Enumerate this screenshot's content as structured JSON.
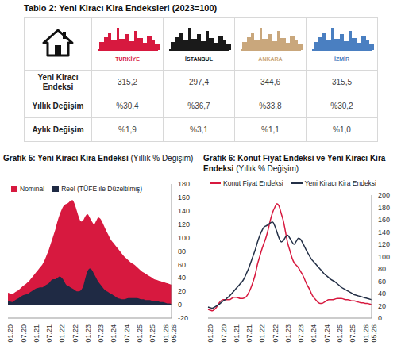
{
  "table": {
    "title": "Tablo 2: Yeni Kiracı Kira Endeksleri (2023=100)",
    "columns": [
      {
        "label": "TÜRKİYE",
        "color": "#d7193f"
      },
      {
        "label": "İSTANBUL",
        "color": "#1a1a1a"
      },
      {
        "label": "ANKARA",
        "color": "#c9a77c"
      },
      {
        "label": "İZMİR",
        "color": "#4a7fc1"
      }
    ],
    "rows": [
      {
        "label": "Yeni Kiracı Endeksi",
        "values": [
          "315,2",
          "297,4",
          "344,6",
          "315,5"
        ]
      },
      {
        "label": "Yıllık Değişim",
        "values": [
          "%30,4",
          "%36,7",
          "%33,8",
          "%30,2"
        ]
      },
      {
        "label": "Aylık Değişim",
        "values": [
          "%1,9",
          "%3,1",
          "%1,1",
          "%1,0"
        ]
      }
    ]
  },
  "chart_data": [
    {
      "type": "area",
      "title": "Grafik 5: Yeni Kiracı Kira Endeksi",
      "subtitle": "(Yıllık % Değişim)",
      "legend": "top-left",
      "grid": false,
      "categories": [
        "01.20",
        null,
        null,
        null,
        null,
        null,
        "07.20",
        null,
        null,
        null,
        null,
        null,
        "01.21",
        null,
        null,
        null,
        null,
        null,
        "07.21",
        null,
        null,
        null,
        null,
        null,
        "01.22",
        null,
        null,
        null,
        null,
        null,
        "07.22",
        null,
        null,
        null,
        null,
        null,
        "01.23",
        null,
        null,
        null,
        null,
        null,
        "07.23",
        null,
        null,
        null,
        null,
        null,
        "01.24",
        null,
        null,
        null,
        null,
        null,
        "07.24",
        null,
        null,
        null,
        null,
        null,
        "01.25",
        null,
        null,
        null,
        null,
        null,
        "07.25",
        null,
        null,
        null,
        null,
        null,
        "01.26",
        null,
        null,
        null,
        "05.26"
      ],
      "series": [
        {
          "name": "Nominal",
          "color": "#d7193f",
          "values": [
            18,
            17,
            16,
            18,
            20,
            22,
            25,
            28,
            30,
            33,
            36,
            40,
            44,
            48,
            52,
            56,
            60,
            66,
            74,
            82,
            92,
            102,
            112,
            124,
            134,
            142,
            148,
            150,
            152,
            155,
            156,
            150,
            140,
            130,
            124,
            126,
            132,
            135,
            130,
            124,
            120,
            125,
            130,
            128,
            122,
            115,
            108,
            102,
            96,
            92,
            88,
            84,
            80,
            76,
            72,
            69,
            66,
            63,
            61,
            59,
            56,
            53,
            50,
            48,
            46,
            44,
            42,
            40,
            38,
            37,
            36,
            35,
            34,
            33,
            32,
            31,
            30
          ]
        },
        {
          "name": "Reel (TÜFE ile Düzeltilmiş)",
          "color": "#1f2a44",
          "values": [
            6,
            5,
            4,
            6,
            8,
            10,
            12,
            14,
            15,
            16,
            18,
            20,
            22,
            24,
            25,
            26,
            26,
            28,
            30,
            32,
            36,
            38,
            38,
            40,
            42,
            40,
            36,
            30,
            28,
            26,
            24,
            22,
            20,
            20,
            22,
            28,
            40,
            50,
            54,
            52,
            46,
            40,
            34,
            30,
            26,
            22,
            20,
            18,
            16,
            14,
            12,
            10,
            9,
            8,
            8,
            9,
            10,
            10,
            10,
            10,
            10,
            9,
            8,
            8,
            7,
            7,
            7,
            6,
            6,
            5,
            5,
            4,
            4,
            3,
            2,
            2,
            1
          ]
        }
      ],
      "ylim": [
        -20,
        180
      ],
      "yticks": [
        -20,
        0,
        20,
        40,
        60,
        80,
        100,
        120,
        140,
        160,
        180
      ]
    },
    {
      "type": "line",
      "title": "Grafik 6: Konut Fiyat Endeksi ve Yeni Kiracı Kira Endeksi",
      "subtitle": "(Yıllık % Değişim)",
      "legend": "top",
      "grid": false,
      "categories": [
        "01.20",
        null,
        null,
        null,
        null,
        null,
        "07.20",
        null,
        null,
        null,
        null,
        null,
        "01.21",
        null,
        null,
        null,
        null,
        null,
        "07.21",
        null,
        null,
        null,
        null,
        null,
        "01.22",
        null,
        null,
        null,
        null,
        null,
        "07.22",
        null,
        null,
        null,
        null,
        null,
        "01.23",
        null,
        null,
        null,
        null,
        null,
        "07.23",
        null,
        null,
        null,
        null,
        null,
        "01.24",
        null,
        null,
        null,
        null,
        null,
        "07.24",
        null,
        null,
        null,
        null,
        null,
        "01.25",
        null,
        null,
        null,
        null,
        null,
        "07.25",
        null,
        null,
        null,
        null,
        null,
        "01.26",
        null,
        null,
        null,
        "05.26"
      ],
      "series": [
        {
          "name": "Konut Fiyat Endeksi",
          "color": "#d7193f",
          "values": [
            14,
            13,
            12,
            14,
            18,
            24,
            28,
            30,
            30,
            30,
            30,
            32,
            34,
            34,
            33,
            32,
            32,
            33,
            36,
            42,
            50,
            60,
            72,
            88,
            100,
            112,
            122,
            132,
            145,
            160,
            172,
            180,
            186,
            182,
            170,
            158,
            140,
            122,
            110,
            98,
            90,
            86,
            82,
            76,
            70,
            62,
            54,
            48,
            40,
            34,
            30,
            26,
            24,
            24,
            26,
            28,
            30,
            30,
            30,
            31,
            32,
            32,
            32,
            31,
            30,
            30,
            29,
            28,
            28,
            27,
            26,
            25,
            25,
            24,
            24,
            23,
            22
          ]
        },
        {
          "name": "Yeni Kiracı Kira Endeksi",
          "color": "#243047",
          "values": [
            18,
            17,
            16,
            18,
            20,
            22,
            25,
            28,
            30,
            33,
            36,
            40,
            44,
            48,
            52,
            56,
            60,
            66,
            74,
            82,
            92,
            102,
            112,
            124,
            134,
            142,
            148,
            150,
            152,
            155,
            156,
            150,
            140,
            130,
            124,
            126,
            132,
            135,
            130,
            124,
            120,
            125,
            130,
            128,
            122,
            115,
            108,
            102,
            96,
            92,
            88,
            84,
            80,
            76,
            72,
            69,
            66,
            63,
            61,
            59,
            56,
            53,
            50,
            48,
            46,
            44,
            42,
            40,
            38,
            37,
            36,
            35,
            34,
            33,
            32,
            31,
            30
          ]
        }
      ],
      "ylim": [
        0,
        200
      ],
      "yticks": [
        0,
        20,
        40,
        60,
        80,
        100,
        120,
        140,
        160,
        180,
        200
      ]
    }
  ]
}
